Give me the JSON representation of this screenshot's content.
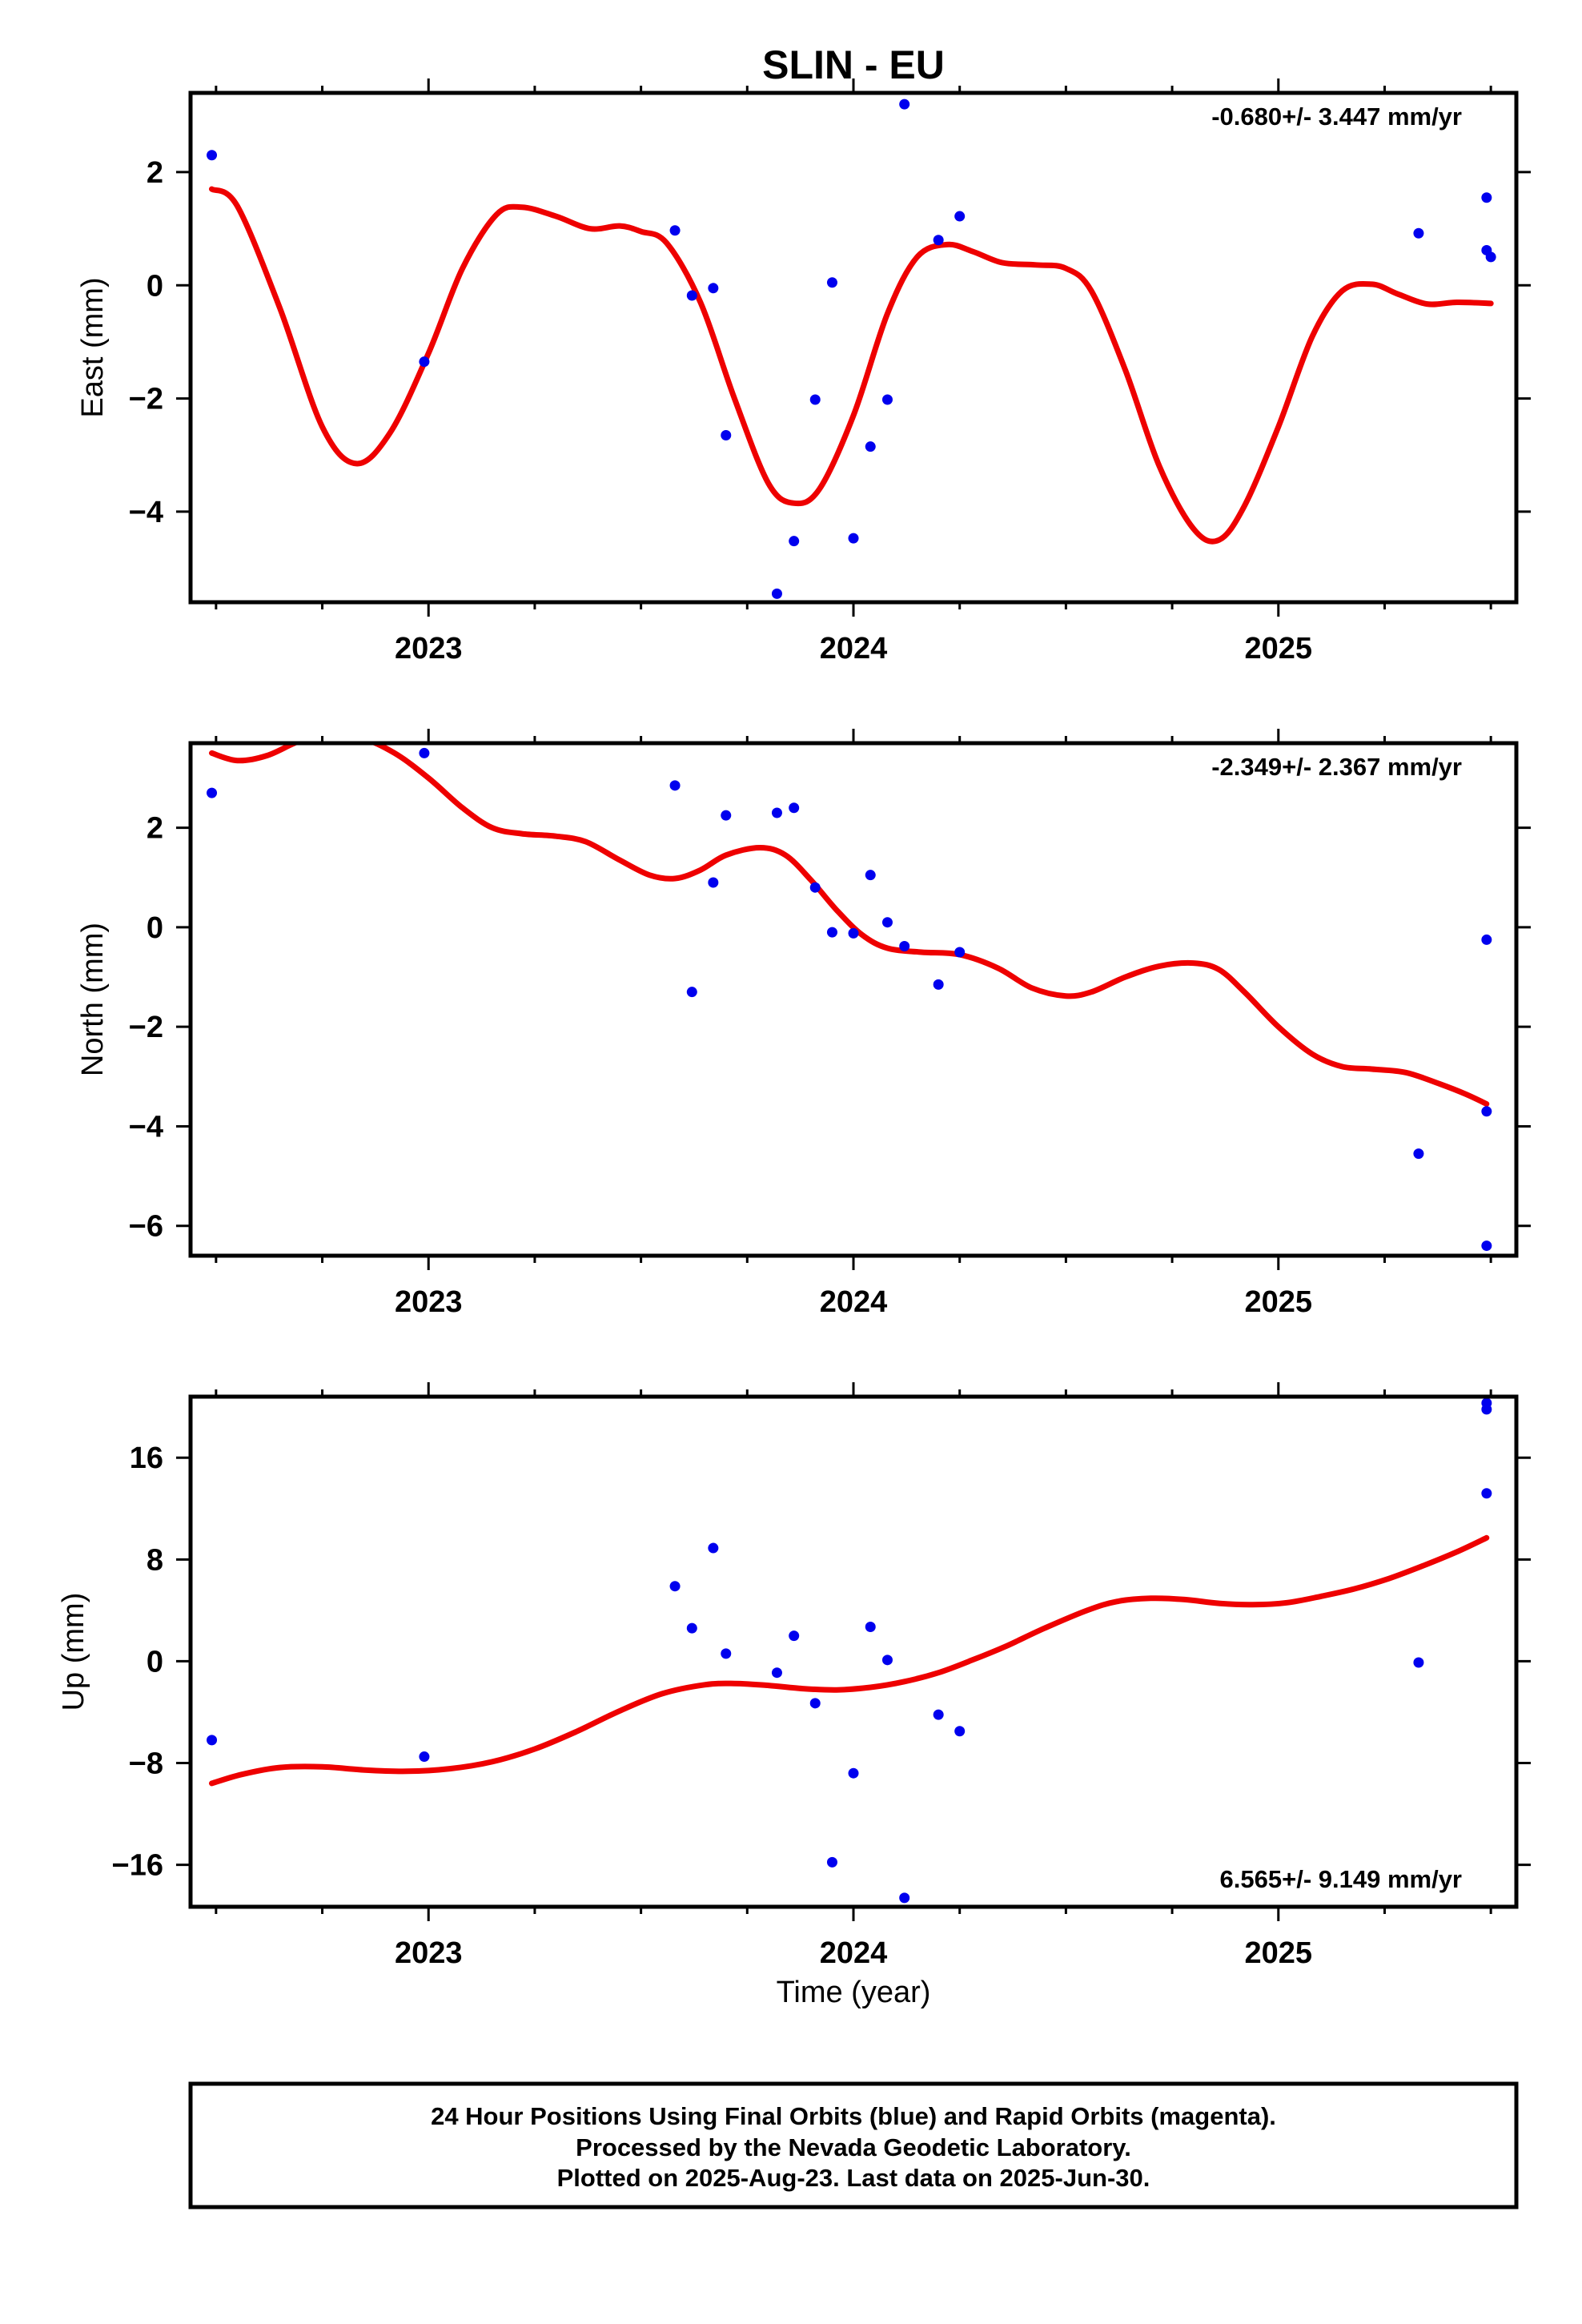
{
  "chart_data": [
    {
      "type": "scatter",
      "title": "SLIN - EU",
      "xlabel": "",
      "ylabel": "East (mm)",
      "xlim": [
        2022.44,
        2025.56
      ],
      "ylim": [
        -5.6,
        3.4
      ],
      "x_ticks": [
        2023,
        2024,
        2025
      ],
      "x_tick_labels": [
        "2023",
        "2024",
        "2025"
      ],
      "y_ticks": [
        -4,
        -2,
        0,
        2
      ],
      "y_tick_labels": [
        "−4",
        "−2",
        "0",
        "2"
      ],
      "rate": "-0.680+/- 3.447 mm/yr",
      "rate_position": "top-right",
      "point_color": "#0000ee",
      "fit_color": "#ee0000",
      "points": [
        [
          2022.49,
          2.3
        ],
        [
          2022.99,
          -1.35
        ],
        [
          2023.58,
          0.97
        ],
        [
          2023.62,
          -0.18
        ],
        [
          2023.67,
          -0.05
        ],
        [
          2023.7,
          -2.65
        ],
        [
          2023.82,
          -5.45
        ],
        [
          2023.86,
          -4.52
        ],
        [
          2023.91,
          -2.02
        ],
        [
          2023.95,
          0.05
        ],
        [
          2024.0,
          -4.47
        ],
        [
          2024.04,
          -2.85
        ],
        [
          2024.08,
          -2.02
        ],
        [
          2024.12,
          3.2
        ],
        [
          2024.2,
          0.8
        ],
        [
          2024.25,
          1.22
        ],
        [
          2025.33,
          0.92
        ],
        [
          2025.49,
          1.55
        ],
        [
          2025.49,
          0.62
        ],
        [
          2025.5,
          0.5
        ]
      ],
      "fit": [
        [
          2022.49,
          1.7
        ],
        [
          2022.55,
          1.4
        ],
        [
          2022.65,
          -0.4
        ],
        [
          2022.75,
          -2.5
        ],
        [
          2022.83,
          -3.15
        ],
        [
          2022.91,
          -2.6
        ],
        [
          2023.0,
          -1.2
        ],
        [
          2023.08,
          0.3
        ],
        [
          2023.16,
          1.25
        ],
        [
          2023.22,
          1.38
        ],
        [
          2023.3,
          1.22
        ],
        [
          2023.38,
          1.0
        ],
        [
          2023.45,
          1.05
        ],
        [
          2023.5,
          0.95
        ],
        [
          2023.56,
          0.75
        ],
        [
          2023.64,
          -0.3
        ],
        [
          2023.72,
          -2.0
        ],
        [
          2023.8,
          -3.5
        ],
        [
          2023.86,
          -3.85
        ],
        [
          2023.92,
          -3.6
        ],
        [
          2024.0,
          -2.3
        ],
        [
          2024.08,
          -0.5
        ],
        [
          2024.15,
          0.5
        ],
        [
          2024.22,
          0.72
        ],
        [
          2024.28,
          0.6
        ],
        [
          2024.35,
          0.4
        ],
        [
          2024.43,
          0.36
        ],
        [
          2024.5,
          0.3
        ],
        [
          2024.56,
          -0.1
        ],
        [
          2024.64,
          -1.5
        ],
        [
          2024.72,
          -3.2
        ],
        [
          2024.8,
          -4.3
        ],
        [
          2024.86,
          -4.5
        ],
        [
          2024.92,
          -3.9
        ],
        [
          2025.0,
          -2.5
        ],
        [
          2025.08,
          -0.9
        ],
        [
          2025.15,
          -0.1
        ],
        [
          2025.22,
          0.02
        ],
        [
          2025.28,
          -0.15
        ],
        [
          2025.35,
          -0.33
        ],
        [
          2025.42,
          -0.3
        ],
        [
          2025.5,
          -0.32
        ]
      ]
    },
    {
      "type": "scatter",
      "title": "",
      "xlabel": "",
      "ylabel": "North (mm)",
      "xlim": [
        2022.44,
        2025.56
      ],
      "ylim": [
        -6.6,
        3.7
      ],
      "x_ticks": [
        2023,
        2024,
        2025
      ],
      "x_tick_labels": [
        "2023",
        "2024",
        "2025"
      ],
      "y_ticks": [
        -6,
        -4,
        -2,
        0,
        2
      ],
      "y_tick_labels": [
        "−6",
        "−4",
        "−2",
        "0",
        "2"
      ],
      "rate": "-2.349+/- 2.367 mm/yr",
      "rate_position": "top-right",
      "point_color": "#0000ee",
      "fit_color": "#ee0000",
      "points": [
        [
          2022.49,
          2.7
        ],
        [
          2022.99,
          3.5
        ],
        [
          2023.58,
          2.85
        ],
        [
          2023.62,
          -1.3
        ],
        [
          2023.67,
          0.9
        ],
        [
          2023.7,
          2.25
        ],
        [
          2023.82,
          2.3
        ],
        [
          2023.86,
          2.4
        ],
        [
          2023.91,
          0.8
        ],
        [
          2023.95,
          -0.1
        ],
        [
          2024.0,
          -0.12
        ],
        [
          2024.04,
          1.05
        ],
        [
          2024.08,
          0.1
        ],
        [
          2024.12,
          -0.38
        ],
        [
          2024.2,
          -1.15
        ],
        [
          2024.25,
          -0.5
        ],
        [
          2025.33,
          -4.55
        ],
        [
          2025.49,
          -0.25
        ],
        [
          2025.49,
          -3.7
        ],
        [
          2025.49,
          -6.4
        ]
      ],
      "fit": [
        [
          2022.49,
          3.5
        ],
        [
          2022.55,
          3.35
        ],
        [
          2022.62,
          3.45
        ],
        [
          2022.7,
          3.75
        ],
        [
          2022.76,
          3.78
        ],
        [
          2022.84,
          3.8
        ],
        [
          2022.92,
          3.5
        ],
        [
          2023.0,
          3.0
        ],
        [
          2023.08,
          2.4
        ],
        [
          2023.15,
          2.0
        ],
        [
          2023.22,
          1.88
        ],
        [
          2023.3,
          1.83
        ],
        [
          2023.37,
          1.72
        ],
        [
          2023.45,
          1.35
        ],
        [
          2023.52,
          1.05
        ],
        [
          2023.58,
          0.98
        ],
        [
          2023.64,
          1.15
        ],
        [
          2023.7,
          1.45
        ],
        [
          2023.78,
          1.6
        ],
        [
          2023.84,
          1.45
        ],
        [
          2023.9,
          0.95
        ],
        [
          2023.96,
          0.35
        ],
        [
          2024.02,
          -0.15
        ],
        [
          2024.08,
          -0.42
        ],
        [
          2024.16,
          -0.5
        ],
        [
          2024.25,
          -0.55
        ],
        [
          2024.34,
          -0.82
        ],
        [
          2024.42,
          -1.22
        ],
        [
          2024.5,
          -1.38
        ],
        [
          2024.56,
          -1.3
        ],
        [
          2024.64,
          -1.0
        ],
        [
          2024.72,
          -0.78
        ],
        [
          2024.8,
          -0.72
        ],
        [
          2024.86,
          -0.85
        ],
        [
          2024.92,
          -1.3
        ],
        [
          2025.0,
          -2.0
        ],
        [
          2025.08,
          -2.55
        ],
        [
          2025.15,
          -2.8
        ],
        [
          2025.22,
          -2.85
        ],
        [
          2025.3,
          -2.92
        ],
        [
          2025.38,
          -3.15
        ],
        [
          2025.44,
          -3.35
        ],
        [
          2025.49,
          -3.55
        ]
      ]
    },
    {
      "type": "scatter",
      "title": "",
      "xlabel": "Time (year)",
      "ylabel": "Up (mm)",
      "xlim": [
        2022.44,
        2025.56
      ],
      "ylim": [
        -19.3,
        20.8
      ],
      "x_ticks": [
        2023,
        2024,
        2025
      ],
      "x_tick_labels": [
        "2023",
        "2024",
        "2025"
      ],
      "y_ticks": [
        -16,
        -8,
        0,
        8,
        16
      ],
      "y_tick_labels": [
        "−16",
        "−8",
        "0",
        "8",
        "16"
      ],
      "rate": "6.565+/- 9.149 mm/yr",
      "rate_position": "bottom-right",
      "point_color": "#0000ee",
      "fit_color": "#ee0000",
      "points": [
        [
          2022.49,
          -6.2
        ],
        [
          2022.99,
          -7.5
        ],
        [
          2023.58,
          5.9
        ],
        [
          2023.62,
          2.6
        ],
        [
          2023.67,
          8.9
        ],
        [
          2023.7,
          0.6
        ],
        [
          2023.82,
          -0.9
        ],
        [
          2023.86,
          2.0
        ],
        [
          2023.91,
          -3.3
        ],
        [
          2023.95,
          -15.8
        ],
        [
          2024.0,
          -8.8
        ],
        [
          2024.04,
          2.7
        ],
        [
          2024.08,
          0.1
        ],
        [
          2024.12,
          -18.6
        ],
        [
          2024.2,
          -4.2
        ],
        [
          2024.25,
          -5.5
        ],
        [
          2025.33,
          -0.1
        ],
        [
          2025.49,
          20.3
        ],
        [
          2025.49,
          19.8
        ],
        [
          2025.49,
          13.2
        ]
      ],
      "fit": [
        [
          2022.49,
          -9.6
        ],
        [
          2022.56,
          -8.9
        ],
        [
          2022.65,
          -8.35
        ],
        [
          2022.75,
          -8.3
        ],
        [
          2022.85,
          -8.55
        ],
        [
          2022.95,
          -8.65
        ],
        [
          2023.05,
          -8.45
        ],
        [
          2023.15,
          -7.9
        ],
        [
          2023.25,
          -6.9
        ],
        [
          2023.35,
          -5.5
        ],
        [
          2023.45,
          -3.9
        ],
        [
          2023.55,
          -2.55
        ],
        [
          2023.65,
          -1.85
        ],
        [
          2023.72,
          -1.75
        ],
        [
          2023.8,
          -1.9
        ],
        [
          2023.88,
          -2.15
        ],
        [
          2023.96,
          -2.25
        ],
        [
          2024.04,
          -2.05
        ],
        [
          2024.12,
          -1.6
        ],
        [
          2024.2,
          -0.9
        ],
        [
          2024.28,
          0.1
        ],
        [
          2024.36,
          1.2
        ],
        [
          2024.45,
          2.6
        ],
        [
          2024.55,
          4.0
        ],
        [
          2024.62,
          4.7
        ],
        [
          2024.7,
          4.95
        ],
        [
          2024.78,
          4.85
        ],
        [
          2024.86,
          4.55
        ],
        [
          2024.94,
          4.45
        ],
        [
          2025.02,
          4.6
        ],
        [
          2025.1,
          5.1
        ],
        [
          2025.18,
          5.7
        ],
        [
          2025.26,
          6.5
        ],
        [
          2025.34,
          7.5
        ],
        [
          2025.42,
          8.6
        ],
        [
          2025.49,
          9.7
        ]
      ]
    }
  ],
  "footer": {
    "line1": "24 Hour Positions Using Final Orbits (blue) and Rapid Orbits (magenta).",
    "line2": "Processed by the Nevada Geodetic Laboratory.",
    "line3": "Plotted on 2025-Aug-23. Last data on 2025-Jun-30."
  }
}
